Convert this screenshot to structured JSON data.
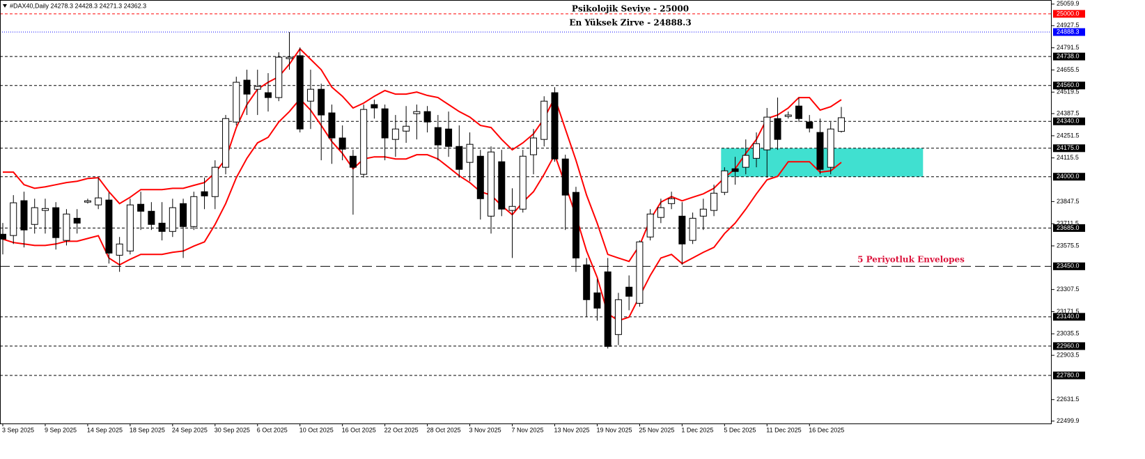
{
  "chart_data": {
    "type": "candlestick",
    "title": "#DAX40,Daily  24278.3 24428.3 24271.3 24362.3",
    "categories": [
      "3 Sep 2025",
      null,
      null,
      null,
      "9 Sep 2025",
      null,
      null,
      null,
      "14 Sep 2025",
      null,
      null,
      null,
      "18 Sep 2025",
      null,
      null,
      null,
      "24 Sep 2025",
      null,
      null,
      null,
      "30 Sep 2025",
      null,
      null,
      null,
      "6 Oct 2025",
      null,
      null,
      null,
      "10 Oct 2025",
      null,
      null,
      null,
      "16 Oct 2025",
      null,
      null,
      null,
      "22 Oct 2025",
      null,
      null,
      null,
      "28 Oct 2025",
      null,
      null,
      null,
      "3 Nov 2025",
      null,
      null,
      null,
      "7 Nov 2025",
      null,
      null,
      null,
      "13 Nov 2025",
      null,
      null,
      null,
      "19 Nov 2025",
      null,
      null,
      null,
      "25 Nov 2025",
      null,
      null,
      null,
      "1 Dec 2025",
      null,
      null,
      null,
      "5 Dec 2025",
      null,
      null,
      null,
      "11 Dec 2025",
      null,
      null,
      null,
      "16 Dec 2025",
      null,
      null,
      null
    ],
    "open": [
      23647,
      23639,
      23853,
      23707,
      23793,
      23810,
      23609,
      23745,
      23844,
      23827,
      23857,
      23518,
      23544,
      23831,
      23788,
      23715,
      23664,
      23835,
      23694,
      23908,
      23878,
      24058,
      24336,
      24593,
      24537,
      24516,
      24486,
      24725,
      24743,
      24464,
      24537,
      24392,
      24238,
      24126,
      24015,
      24443,
      24417,
      24229,
      24280,
      24387,
      24400,
      24302,
      24293,
      24186,
      24088,
      24126,
      23758,
      24092,
      23793,
      23801,
      24135,
      24229,
      24516,
      24109,
      23904,
      23459,
      23287,
      23416,
      23031,
      23322,
      23223,
      23630,
      23750,
      23835,
      23758,
      23609,
      23758,
      23793,
      23904,
      24049,
      24058,
      24113,
      24165,
      24357,
      24370,
      24434,
      24336,
      24272,
      24058,
      24278.3
    ],
    "high": [
      23716,
      23887,
      23908,
      23865,
      23865,
      23844,
      23801,
      23801,
      23865,
      23994,
      23904,
      23630,
      23865,
      23908,
      23844,
      23844,
      23865,
      23865,
      23908,
      23994,
      24101,
      24379,
      24614,
      24657,
      24657,
      24636,
      24764,
      24888.3,
      24794,
      24657,
      24571,
      24443,
      24315,
      24165,
      24443,
      24473,
      24443,
      24379,
      24434,
      24443,
      24434,
      24379,
      24400,
      24315,
      24272,
      24165,
      24186,
      24165,
      23929,
      24165,
      24293,
      24494,
      24550,
      24135,
      23938,
      23501,
      23373,
      23501,
      23287,
      23394,
      23609,
      23801,
      23865,
      23908,
      23844,
      23780,
      23865,
      23951,
      24058,
      24122,
      24229,
      24272,
      24422,
      24486,
      24400,
      24486,
      24379,
      24357,
      24336,
      24428.3
    ],
    "low": [
      23523,
      23587,
      23566,
      23651,
      23651,
      23553,
      23578,
      23651,
      23835,
      23801,
      23467,
      23416,
      23523,
      23673,
      23673,
      23609,
      23630,
      23501,
      23673,
      23801,
      23801,
      24015,
      24315,
      24379,
      24379,
      24400,
      24464,
      24657,
      24272,
      24293,
      24101,
      24079,
      24101,
      23767,
      23994,
      24357,
      24101,
      24122,
      24208,
      24229,
      24272,
      24101,
      24122,
      23994,
      23972,
      23737,
      23651,
      23758,
      23501,
      23780,
      24015,
      24186,
      24092,
      23673,
      23416,
      23138,
      23116,
      22945,
      22966,
      23180,
      23202,
      23609,
      23715,
      23801,
      23459,
      23587,
      23673,
      23758,
      23887,
      23951,
      24015,
      24058,
      23994,
      24165,
      24357,
      24336,
      24272,
      24015,
      24015,
      24271.3
    ],
    "close": [
      23617,
      23840,
      23673,
      23810,
      23805,
      23626,
      23771,
      23715,
      23852,
      23870,
      23531,
      23587,
      23827,
      23788,
      23707,
      23664,
      23810,
      23694,
      23878,
      23882,
      24058,
      24357,
      24580,
      24507,
      24554,
      24486,
      24734,
      24734,
      24293,
      24537,
      24379,
      24238,
      24169,
      24058,
      24413,
      24422,
      24238,
      24293,
      24310,
      24400,
      24336,
      24195,
      24186,
      24045,
      24199,
      23865,
      24152,
      23801,
      23818,
      24126,
      24238,
      24464,
      24109,
      23887,
      23501,
      23245,
      23193,
      22958,
      23245,
      23266,
      23600,
      23771,
      23810,
      23865,
      23587,
      23745,
      23801,
      23899,
      24036,
      24032,
      24131,
      24203,
      24366,
      24229,
      24379,
      24357,
      24298,
      24045,
      24293,
      24362.3
    ],
    "bull_color": "#ffffff",
    "bear_color": "#000000",
    "envelopes": [
      {
        "color": "#ff0000",
        "values": [
          24028,
          24028,
          23951,
          23929,
          23938,
          23951,
          23964,
          23972,
          23989,
          23994,
          23908,
          23835,
          23874,
          23921,
          23921,
          23921,
          23929,
          23929,
          23947,
          23964,
          24024,
          24109,
          24302,
          24443,
          24537,
          24580,
          24614,
          24691,
          24785,
          24721,
          24657,
          24550,
          24494,
          24422,
          24452,
          24494,
          24529,
          24507,
          24507,
          24520,
          24499,
          24486,
          24443,
          24400,
          24366,
          24315,
          24302,
          24229,
          24165,
          24208,
          24263,
          24357,
          24486,
          24293,
          24101,
          23887,
          23715,
          23523,
          23501,
          23480,
          23579,
          23737,
          23844,
          23878,
          23852,
          23874,
          23895,
          23929,
          23994,
          24049,
          24143,
          24229,
          24357,
          24379,
          24422,
          24486,
          24486,
          24409,
          24430,
          24473
        ]
      },
      {
        "color": "#ff0000",
        "values": [
          23617,
          23596,
          23587,
          23578,
          23578,
          23587,
          23604,
          23604,
          23621,
          23638,
          23501,
          23459,
          23493,
          23523,
          23523,
          23523,
          23536,
          23544,
          23574,
          23600,
          23707,
          23835,
          23994,
          24113,
          24208,
          24242,
          24336,
          24400,
          24477,
          24409,
          24315,
          24216,
          24143,
          24049,
          24109,
          24122,
          24122,
          24109,
          24109,
          24135,
          24135,
          24109,
          24058,
          24006,
          23964,
          23908,
          23887,
          23822,
          23767,
          23844,
          23908,
          24015,
          24135,
          23951,
          23758,
          23544,
          23382,
          23159,
          23116,
          23138,
          23266,
          23394,
          23501,
          23523,
          23467,
          23501,
          23536,
          23566,
          23651,
          23715,
          23801,
          23895,
          23981,
          24002,
          24092,
          24092,
          24092,
          24028,
          24036,
          24088
        ]
      }
    ],
    "ylim": [
      22485,
      25085
    ],
    "yticks": [
      25059.9,
      24927.5,
      24791.5,
      24655.5,
      24519.5,
      24387.5,
      24251.5,
      24115.5,
      23847.5,
      23711.5,
      23575.5,
      23307.5,
      23171.5,
      23035.5,
      22903.5,
      22631.5,
      22499.9
    ],
    "levels": [
      {
        "value": 25000,
        "label": "25000.0",
        "color": "#ff0000",
        "style": "dashed"
      },
      {
        "value": 24888.3,
        "label": "24888.3",
        "color": "#0000ff",
        "style": "dotted"
      },
      {
        "value": 24738,
        "label": "24738.0",
        "color": "#000000",
        "style": "dashed"
      },
      {
        "value": 24560,
        "label": "24560.0",
        "color": "#000000",
        "style": "dashed"
      },
      {
        "value": 24340,
        "label": "24340.0",
        "color": "#000000",
        "style": "dashed"
      },
      {
        "value": 24175,
        "label": "24175.0",
        "color": "#000000",
        "style": "dashed"
      },
      {
        "value": 24000,
        "label": "24000.0",
        "color": "#000000",
        "style": "dashed"
      },
      {
        "value": 23685,
        "label": "23685.0",
        "color": "#000000",
        "style": "dashed"
      },
      {
        "value": 23450,
        "label": "23450.0",
        "color": "#000000",
        "style": "long-dash"
      },
      {
        "value": 23140,
        "label": "23140.0",
        "color": "#000000",
        "style": "dashed"
      },
      {
        "value": 22960,
        "label": "22960.0",
        "color": "#000000",
        "style": "dashed"
      },
      {
        "value": 22780,
        "label": "22780.0",
        "color": "#000000",
        "style": "dashed"
      }
    ],
    "zone": {
      "range": [
        24000,
        24175
      ],
      "color": "#40e0d0"
    },
    "annotations": [
      {
        "text": "Psikolojik Seviye - 25000",
        "color": "#000000"
      },
      {
        "text": "En Yüksek Zirve - 24888.3",
        "color": "#000000"
      },
      {
        "text": "5 Periyotluk Envelopes",
        "color": "#dc143c"
      }
    ]
  }
}
